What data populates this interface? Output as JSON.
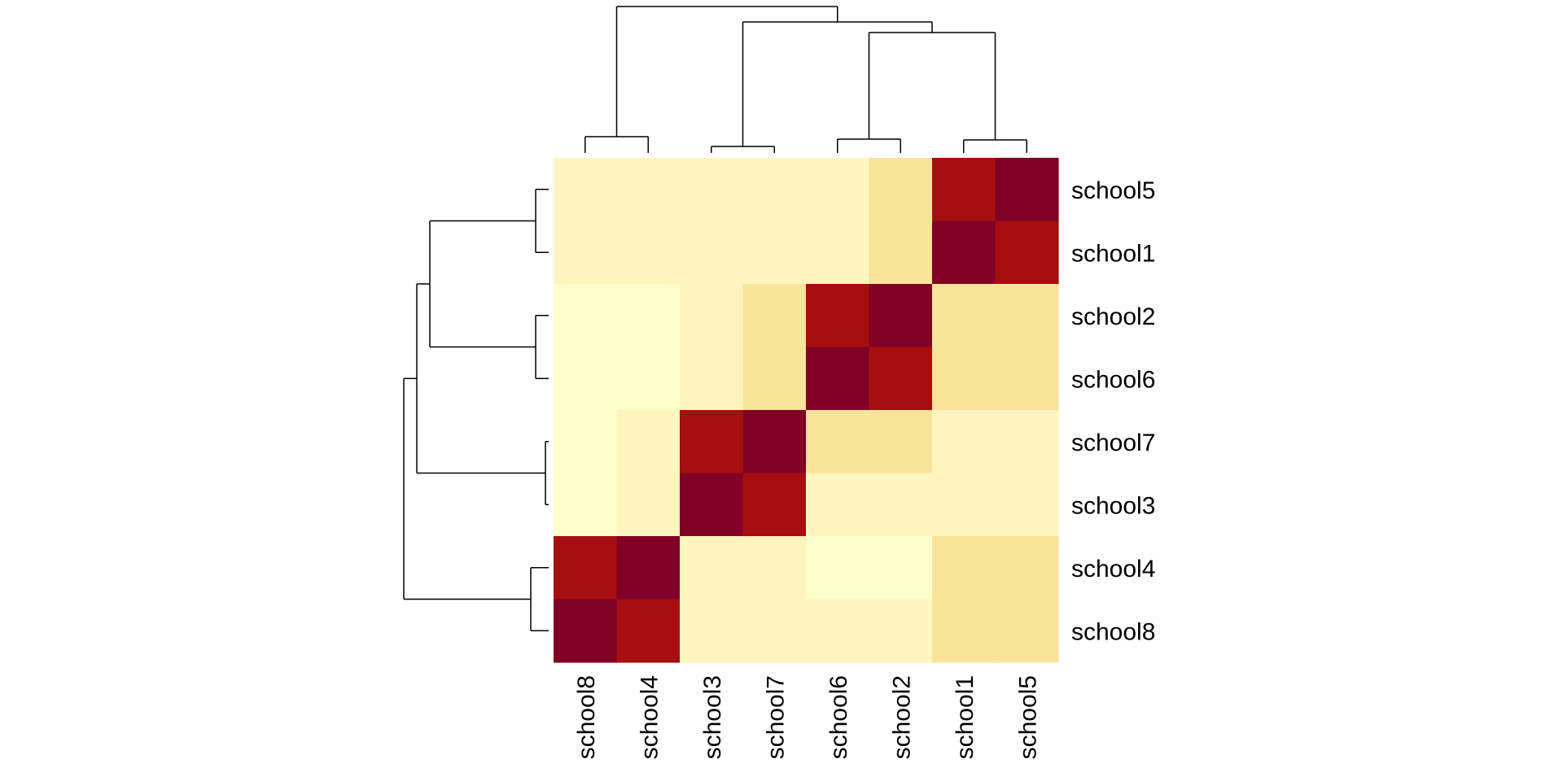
{
  "chart_data": {
    "type": "heatmap",
    "row_labels": [
      "school5",
      "school1",
      "school2",
      "school6",
      "school7",
      "school3",
      "school4",
      "school8"
    ],
    "col_labels": [
      "school8",
      "school4",
      "school3",
      "school7",
      "school6",
      "school2",
      "school1",
      "school5"
    ],
    "values": [
      [
        2,
        2,
        2,
        2,
        2,
        3,
        9,
        10
      ],
      [
        2,
        2,
        2,
        2,
        2,
        3,
        10,
        9
      ],
      [
        1,
        1,
        2,
        3,
        9,
        10,
        3,
        3
      ],
      [
        1,
        1,
        2,
        3,
        10,
        9,
        3,
        3
      ],
      [
        1,
        2,
        9,
        10,
        3,
        3,
        2,
        2
      ],
      [
        1,
        2,
        10,
        9,
        2,
        2,
        2,
        2
      ],
      [
        9,
        10,
        2,
        2,
        1,
        1,
        3,
        3
      ],
      [
        10,
        9,
        2,
        2,
        2,
        2,
        3,
        3
      ]
    ],
    "color_scale": [
      "#FFFFCC",
      "#FFF5C0",
      "#FDF2B8",
      "#FAE49C",
      "#A50F0F",
      "#800026"
    ],
    "row_dendrogram": true,
    "col_dendrogram": true
  }
}
